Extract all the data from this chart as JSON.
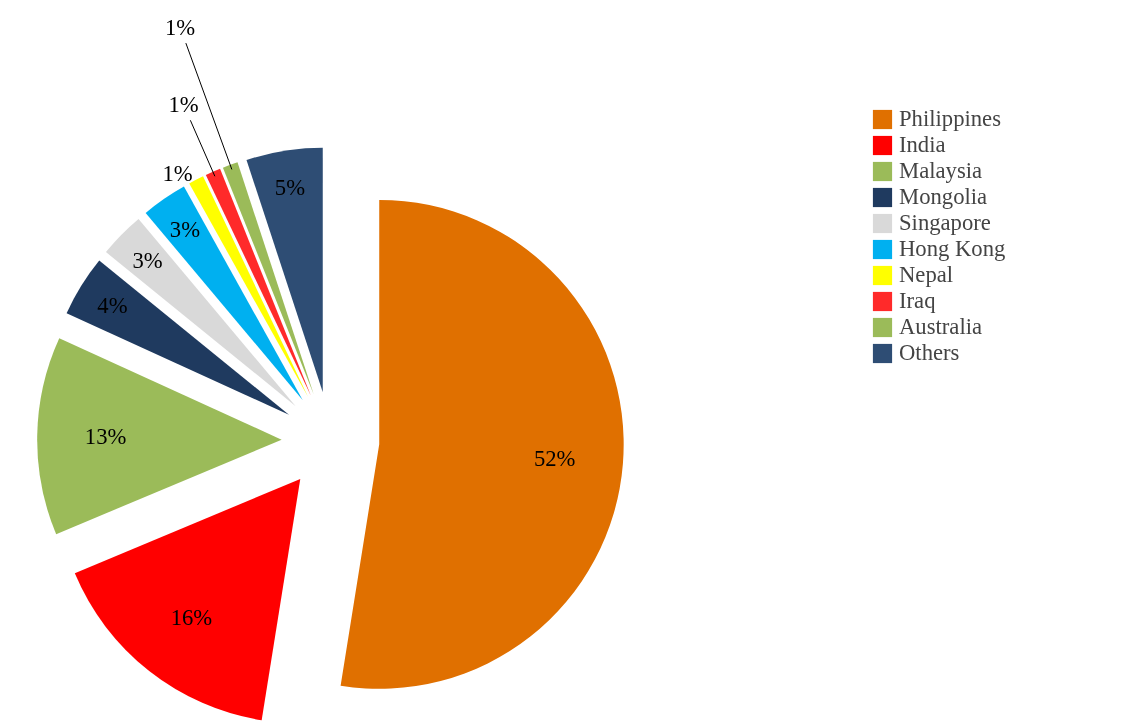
{
  "chart_data": {
    "type": "pie",
    "categories": [
      "Philippines",
      "India",
      "Malaysia",
      "Mongolia",
      "Singapore",
      "Hong Kong",
      "Nepal",
      "Iraq",
      "Australia",
      "Others"
    ],
    "values": [
      52,
      16,
      13,
      4,
      3,
      3,
      1,
      1,
      1,
      5
    ],
    "colors": [
      "#e07000",
      "#ff0000",
      "#9bbb59",
      "#1f3a5f",
      "#d9d9d9",
      "#00b0f0",
      "#ffff00",
      "#ff2a2a",
      "#9bbb59",
      "#2e4d74"
    ],
    "value_labels": [
      "52%",
      "16%",
      "13%",
      "4%",
      "3%",
      "3%",
      "1%",
      "1%",
      "1%",
      "5%"
    ],
    "legend": "right"
  }
}
